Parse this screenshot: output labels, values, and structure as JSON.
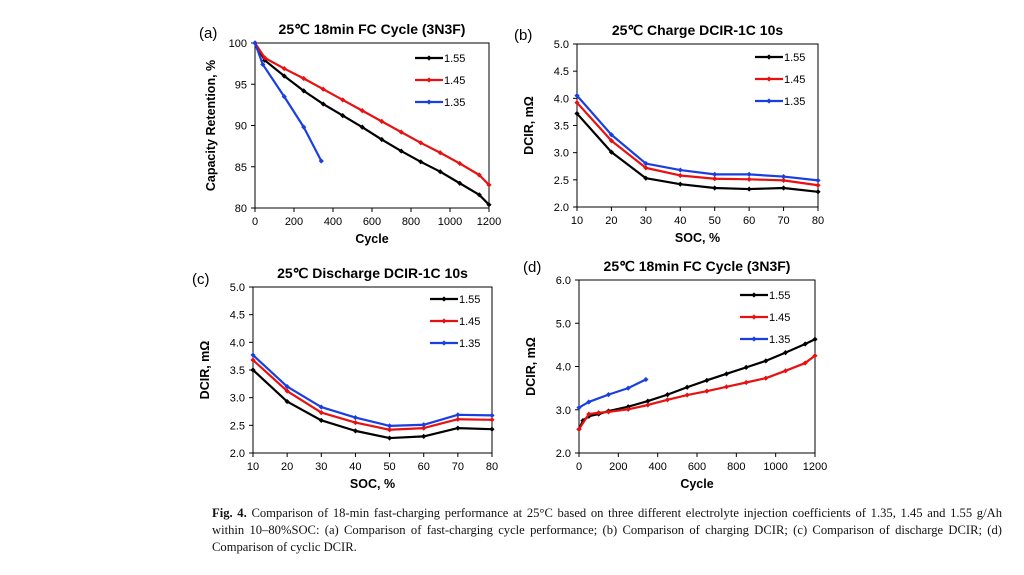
{
  "figure": {
    "caption_label": "Fig. 4.",
    "caption_text": "Comparison of 18-min fast-charging performance at 25°C based on three different electrolyte injection coefficients of 1.35, 1.45 and 1.55 g/Ah within 10–80%SOC: (a) Comparison of fast-charging cycle performance; (b) Comparison of charging DCIR; (c) Comparison of discharge DCIR; (d) Comparison of cyclic DCIR."
  },
  "chart_data": [
    {
      "panel": "(a)",
      "type": "line",
      "title": "25℃ 18min FC Cycle (3N3F)",
      "xlabel": "Cycle",
      "ylabel": "Capacity Retention, %",
      "xlim": [
        0,
        1200
      ],
      "ylim": [
        80,
        100
      ],
      "xticks": [
        0,
        200,
        400,
        600,
        800,
        1000,
        1200
      ],
      "yticks": [
        80,
        85,
        90,
        95,
        100
      ],
      "grid": false,
      "legend": "top-right",
      "series": [
        {
          "name": "1.55",
          "color": "#000000",
          "x": [
            0,
            50,
            150,
            250,
            350,
            450,
            550,
            650,
            750,
            850,
            950,
            1050,
            1150,
            1200
          ],
          "y": [
            100,
            97.9,
            96.0,
            94.2,
            92.6,
            91.2,
            89.8,
            88.3,
            86.9,
            85.6,
            84.4,
            83.0,
            81.6,
            80.4
          ]
        },
        {
          "name": "1.45",
          "color": "#e81010",
          "x": [
            0,
            50,
            150,
            250,
            350,
            450,
            550,
            650,
            750,
            850,
            950,
            1050,
            1150,
            1200
          ],
          "y": [
            100,
            98.2,
            96.9,
            95.7,
            94.4,
            93.1,
            91.8,
            90.5,
            89.2,
            87.9,
            86.7,
            85.4,
            84.0,
            82.8
          ]
        },
        {
          "name": "1.35",
          "color": "#1a3fe0",
          "x": [
            0,
            40,
            150,
            250,
            340
          ],
          "y": [
            100,
            97.4,
            93.5,
            89.8,
            85.7
          ]
        }
      ]
    },
    {
      "panel": "(b)",
      "type": "line",
      "title": "25℃ Charge DCIR-1C 10s",
      "xlabel": "SOC, %",
      "ylabel": "DCIR, mΩ",
      "xlim": [
        10,
        80
      ],
      "ylim": [
        2.0,
        5.0
      ],
      "xticks": [
        10,
        20,
        30,
        40,
        50,
        60,
        70,
        80
      ],
      "yticks": [
        2.0,
        2.5,
        3.0,
        3.5,
        4.0,
        4.5,
        5.0
      ],
      "grid": false,
      "legend": "top-right",
      "series": [
        {
          "name": "1.55",
          "color": "#000000",
          "x": [
            10,
            20,
            30,
            40,
            50,
            60,
            70,
            80
          ],
          "y": [
            3.72,
            3.01,
            2.53,
            2.42,
            2.35,
            2.33,
            2.35,
            2.28
          ]
        },
        {
          "name": "1.45",
          "color": "#e81010",
          "x": [
            10,
            20,
            30,
            40,
            50,
            60,
            70,
            80
          ],
          "y": [
            3.92,
            3.22,
            2.72,
            2.58,
            2.52,
            2.51,
            2.49,
            2.4
          ]
        },
        {
          "name": "1.35",
          "color": "#1a3fe0",
          "x": [
            10,
            20,
            30,
            40,
            50,
            60,
            70,
            80
          ],
          "y": [
            4.05,
            3.33,
            2.8,
            2.68,
            2.6,
            2.6,
            2.56,
            2.49
          ]
        }
      ]
    },
    {
      "panel": "(c)",
      "type": "line",
      "title": "25℃ Discharge DCIR-1C 10s",
      "xlabel": "SOC, %",
      "ylabel": "DCIR, mΩ",
      "xlim": [
        10,
        80
      ],
      "ylim": [
        2.0,
        5.0
      ],
      "xticks": [
        10,
        20,
        30,
        40,
        50,
        60,
        70,
        80
      ],
      "yticks": [
        2.0,
        2.5,
        3.0,
        3.5,
        4.0,
        4.5,
        5.0
      ],
      "grid": false,
      "legend": "top-right",
      "series": [
        {
          "name": "1.55",
          "color": "#000000",
          "x": [
            10,
            20,
            30,
            40,
            50,
            60,
            70,
            80
          ],
          "y": [
            3.5,
            2.93,
            2.59,
            2.4,
            2.27,
            2.3,
            2.45,
            2.43
          ]
        },
        {
          "name": "1.45",
          "color": "#e81010",
          "x": [
            10,
            20,
            30,
            40,
            50,
            60,
            70,
            80
          ],
          "y": [
            3.68,
            3.12,
            2.73,
            2.55,
            2.42,
            2.45,
            2.61,
            2.6
          ]
        },
        {
          "name": "1.35",
          "color": "#1a3fe0",
          "x": [
            10,
            20,
            30,
            40,
            50,
            60,
            70,
            80
          ],
          "y": [
            3.77,
            3.2,
            2.83,
            2.64,
            2.49,
            2.51,
            2.69,
            2.68
          ]
        }
      ]
    },
    {
      "panel": "(d)",
      "type": "line",
      "title": "25℃ 18min FC Cycle (3N3F)",
      "xlabel": "Cycle",
      "ylabel": "DCIR, mΩ",
      "xlim": [
        0,
        1200
      ],
      "ylim": [
        2.0,
        6.0
      ],
      "xticks": [
        0,
        200,
        400,
        600,
        800,
        1000,
        1200
      ],
      "yticks": [
        2.0,
        3.0,
        4.0,
        5.0,
        6.0
      ],
      "grid": false,
      "legend": "top-right",
      "series": [
        {
          "name": "1.55",
          "color": "#000000",
          "x": [
            0,
            20,
            50,
            100,
            150,
            250,
            350,
            450,
            550,
            650,
            750,
            850,
            950,
            1050,
            1150,
            1200
          ],
          "y": [
            2.55,
            2.75,
            2.85,
            2.9,
            2.97,
            3.07,
            3.2,
            3.35,
            3.52,
            3.68,
            3.83,
            3.98,
            4.13,
            4.32,
            4.52,
            4.63
          ]
        },
        {
          "name": "1.45",
          "color": "#e81010",
          "x": [
            0,
            50,
            100,
            150,
            250,
            350,
            450,
            550,
            650,
            750,
            850,
            950,
            1050,
            1150,
            1200
          ],
          "y": [
            2.55,
            2.9,
            2.93,
            2.95,
            3.01,
            3.11,
            3.23,
            3.34,
            3.43,
            3.53,
            3.63,
            3.73,
            3.9,
            4.08,
            4.25
          ]
        },
        {
          "name": "1.35",
          "color": "#1a3fe0",
          "x": [
            0,
            50,
            150,
            250,
            340
          ],
          "y": [
            3.05,
            3.18,
            3.35,
            3.5,
            3.7
          ]
        }
      ]
    }
  ]
}
